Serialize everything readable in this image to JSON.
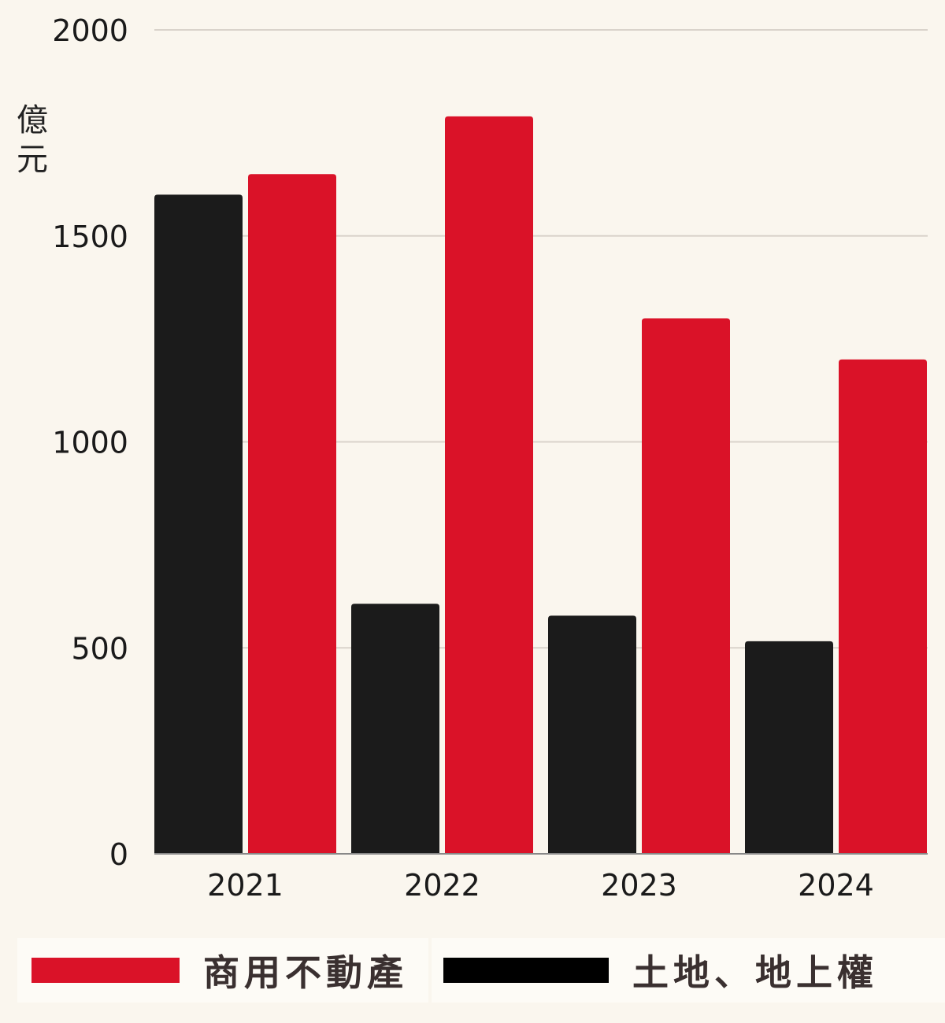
{
  "chart_data": {
    "type": "bar",
    "title": "",
    "xlabel": "",
    "ylabel": "億元",
    "ylim": [
      0,
      2000
    ],
    "yticks": [
      0,
      500,
      1000,
      1500,
      2000
    ],
    "grid": true,
    "categories": [
      "2021",
      "2022",
      "2023",
      "2024"
    ],
    "series": [
      {
        "name": "土地、地上權",
        "color": "#1b1b1b",
        "values": [
          1600,
          607,
          578,
          516
        ]
      },
      {
        "name": "商用不動產",
        "color": "#da1228",
        "values": [
          1650,
          1790,
          1300,
          1200
        ]
      }
    ],
    "legend_position": "bottom"
  }
}
